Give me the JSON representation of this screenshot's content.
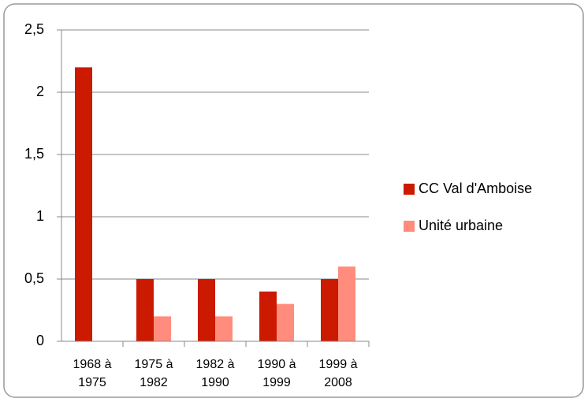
{
  "chart_data": {
    "type": "bar",
    "categories": [
      "1968 à 1975",
      "1975 à 1982",
      "1982 à 1990",
      "1990 à 1999",
      "1999 à 2008"
    ],
    "series": [
      {
        "name": "CC Val d'Amboise",
        "color": "#cc1a00",
        "values": [
          2.2,
          0.5,
          0.5,
          0.4,
          0.5
        ]
      },
      {
        "name": "Unité urbaine",
        "color": "#ff8c7c",
        "values": [
          null,
          0.2,
          0.2,
          0.3,
          0.6
        ]
      }
    ],
    "ylim": [
      0,
      2.5
    ],
    "yticks": [
      0,
      {
        "value": 0.5,
        "label": "0,5"
      },
      1,
      {
        "value": 1.5,
        "label": "1,5"
      },
      2,
      {
        "value": 2.5,
        "label": "2,5"
      }
    ],
    "grid": true,
    "legend": "right"
  }
}
